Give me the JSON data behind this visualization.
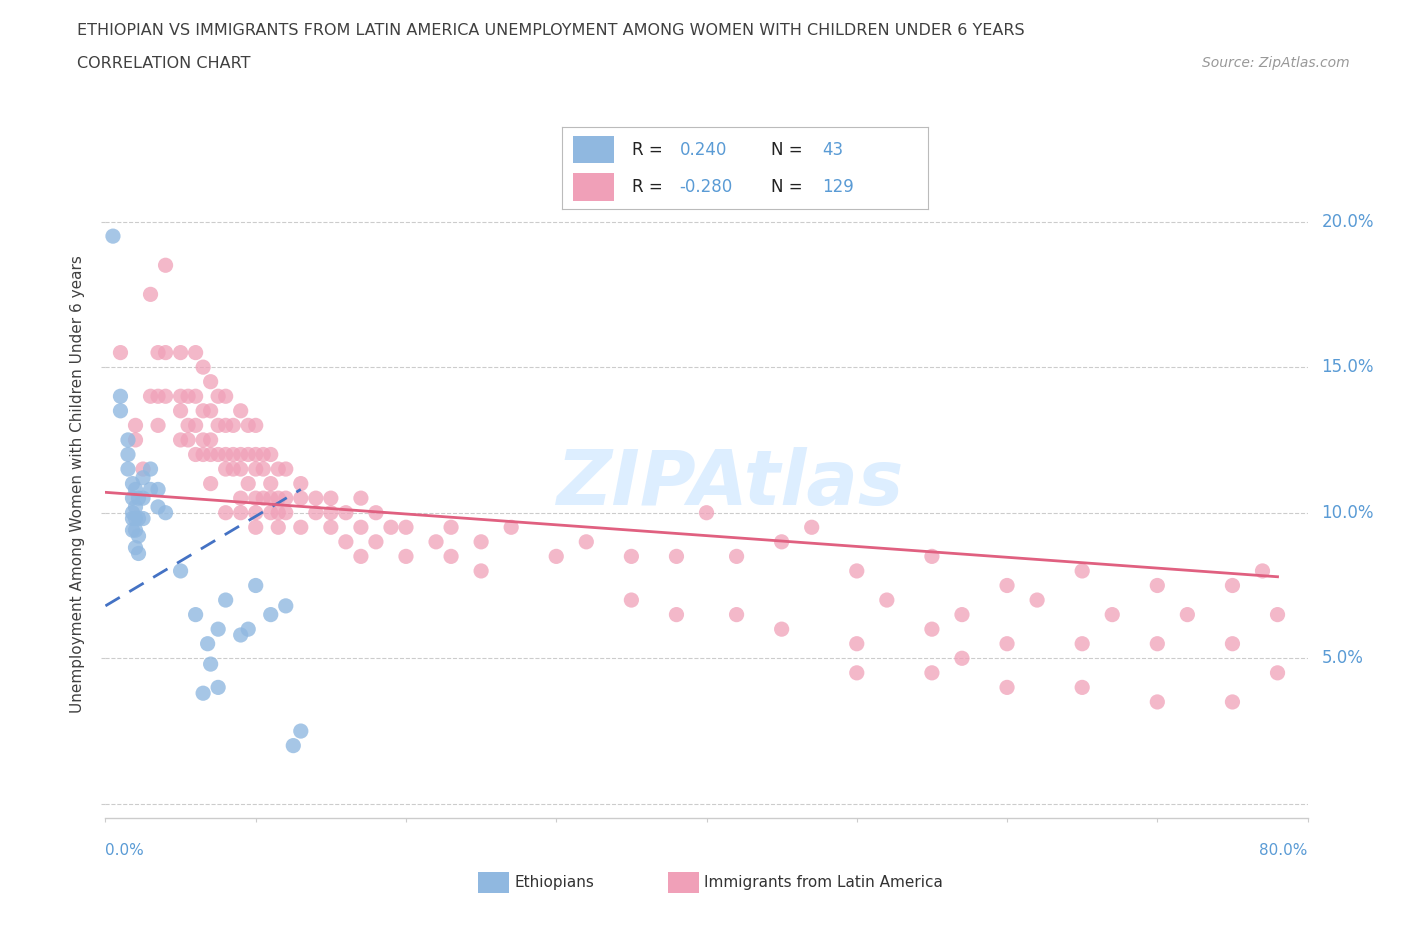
{
  "title_line1": "ETHIOPIAN VS IMMIGRANTS FROM LATIN AMERICA UNEMPLOYMENT AMONG WOMEN WITH CHILDREN UNDER 6 YEARS",
  "title_line2": "CORRELATION CHART",
  "source_text": "Source: ZipAtlas.com",
  "ylabel": "Unemployment Among Women with Children Under 6 years",
  "ytick_labels": [
    "",
    "5.0%",
    "10.0%",
    "15.0%",
    "20.0%"
  ],
  "ytick_values": [
    0.0,
    0.05,
    0.1,
    0.15,
    0.2
  ],
  "xlim": [
    0.0,
    0.8
  ],
  "ylim": [
    -0.005,
    0.225
  ],
  "watermark": "ZIPAtlas",
  "blue_color": "#90b8e0",
  "pink_color": "#f0a0b8",
  "blue_line_color": "#4472c4",
  "pink_line_color": "#e06080",
  "blue_scatter": [
    [
      0.005,
      0.195
    ],
    [
      0.01,
      0.14
    ],
    [
      0.01,
      0.135
    ],
    [
      0.015,
      0.125
    ],
    [
      0.015,
      0.12
    ],
    [
      0.015,
      0.115
    ],
    [
      0.018,
      0.11
    ],
    [
      0.018,
      0.105
    ],
    [
      0.018,
      0.1
    ],
    [
      0.018,
      0.098
    ],
    [
      0.018,
      0.094
    ],
    [
      0.02,
      0.108
    ],
    [
      0.02,
      0.102
    ],
    [
      0.02,
      0.098
    ],
    [
      0.02,
      0.094
    ],
    [
      0.02,
      0.088
    ],
    [
      0.022,
      0.105
    ],
    [
      0.022,
      0.098
    ],
    [
      0.022,
      0.092
    ],
    [
      0.022,
      0.086
    ],
    [
      0.025,
      0.112
    ],
    [
      0.025,
      0.105
    ],
    [
      0.025,
      0.098
    ],
    [
      0.03,
      0.115
    ],
    [
      0.03,
      0.108
    ],
    [
      0.035,
      0.108
    ],
    [
      0.035,
      0.102
    ],
    [
      0.04,
      0.1
    ],
    [
      0.05,
      0.08
    ],
    [
      0.06,
      0.065
    ],
    [
      0.065,
      0.038
    ],
    [
      0.068,
      0.055
    ],
    [
      0.07,
      0.048
    ],
    [
      0.075,
      0.06
    ],
    [
      0.075,
      0.04
    ],
    [
      0.08,
      0.07
    ],
    [
      0.09,
      0.058
    ],
    [
      0.095,
      0.06
    ],
    [
      0.1,
      0.075
    ],
    [
      0.11,
      0.065
    ],
    [
      0.12,
      0.068
    ],
    [
      0.125,
      0.02
    ],
    [
      0.13,
      0.025
    ]
  ],
  "pink_scatter": [
    [
      0.01,
      0.155
    ],
    [
      0.02,
      0.13
    ],
    [
      0.02,
      0.125
    ],
    [
      0.025,
      0.115
    ],
    [
      0.03,
      0.175
    ],
    [
      0.03,
      0.14
    ],
    [
      0.035,
      0.155
    ],
    [
      0.035,
      0.14
    ],
    [
      0.035,
      0.13
    ],
    [
      0.04,
      0.185
    ],
    [
      0.04,
      0.155
    ],
    [
      0.04,
      0.14
    ],
    [
      0.05,
      0.155
    ],
    [
      0.05,
      0.14
    ],
    [
      0.05,
      0.135
    ],
    [
      0.05,
      0.125
    ],
    [
      0.055,
      0.14
    ],
    [
      0.055,
      0.13
    ],
    [
      0.055,
      0.125
    ],
    [
      0.06,
      0.155
    ],
    [
      0.06,
      0.14
    ],
    [
      0.06,
      0.13
    ],
    [
      0.06,
      0.12
    ],
    [
      0.065,
      0.15
    ],
    [
      0.065,
      0.135
    ],
    [
      0.065,
      0.125
    ],
    [
      0.065,
      0.12
    ],
    [
      0.07,
      0.145
    ],
    [
      0.07,
      0.135
    ],
    [
      0.07,
      0.125
    ],
    [
      0.07,
      0.12
    ],
    [
      0.07,
      0.11
    ],
    [
      0.075,
      0.14
    ],
    [
      0.075,
      0.13
    ],
    [
      0.075,
      0.12
    ],
    [
      0.08,
      0.14
    ],
    [
      0.08,
      0.13
    ],
    [
      0.08,
      0.12
    ],
    [
      0.08,
      0.115
    ],
    [
      0.08,
      0.1
    ],
    [
      0.085,
      0.13
    ],
    [
      0.085,
      0.12
    ],
    [
      0.085,
      0.115
    ],
    [
      0.09,
      0.135
    ],
    [
      0.09,
      0.12
    ],
    [
      0.09,
      0.115
    ],
    [
      0.09,
      0.105
    ],
    [
      0.09,
      0.1
    ],
    [
      0.095,
      0.13
    ],
    [
      0.095,
      0.12
    ],
    [
      0.095,
      0.11
    ],
    [
      0.1,
      0.13
    ],
    [
      0.1,
      0.12
    ],
    [
      0.1,
      0.115
    ],
    [
      0.1,
      0.105
    ],
    [
      0.1,
      0.1
    ],
    [
      0.1,
      0.095
    ],
    [
      0.105,
      0.12
    ],
    [
      0.105,
      0.115
    ],
    [
      0.105,
      0.105
    ],
    [
      0.11,
      0.12
    ],
    [
      0.11,
      0.11
    ],
    [
      0.11,
      0.105
    ],
    [
      0.11,
      0.1
    ],
    [
      0.115,
      0.115
    ],
    [
      0.115,
      0.105
    ],
    [
      0.115,
      0.1
    ],
    [
      0.115,
      0.095
    ],
    [
      0.12,
      0.115
    ],
    [
      0.12,
      0.105
    ],
    [
      0.12,
      0.1
    ],
    [
      0.13,
      0.11
    ],
    [
      0.13,
      0.105
    ],
    [
      0.13,
      0.095
    ],
    [
      0.14,
      0.105
    ],
    [
      0.14,
      0.1
    ],
    [
      0.15,
      0.105
    ],
    [
      0.15,
      0.1
    ],
    [
      0.15,
      0.095
    ],
    [
      0.16,
      0.1
    ],
    [
      0.16,
      0.09
    ],
    [
      0.17,
      0.105
    ],
    [
      0.17,
      0.095
    ],
    [
      0.17,
      0.085
    ],
    [
      0.18,
      0.1
    ],
    [
      0.18,
      0.09
    ],
    [
      0.19,
      0.095
    ],
    [
      0.2,
      0.095
    ],
    [
      0.2,
      0.085
    ],
    [
      0.22,
      0.09
    ],
    [
      0.23,
      0.095
    ],
    [
      0.23,
      0.085
    ],
    [
      0.25,
      0.09
    ],
    [
      0.25,
      0.08
    ],
    [
      0.27,
      0.095
    ],
    [
      0.3,
      0.085
    ],
    [
      0.32,
      0.09
    ],
    [
      0.35,
      0.085
    ],
    [
      0.35,
      0.07
    ],
    [
      0.38,
      0.085
    ],
    [
      0.38,
      0.065
    ],
    [
      0.4,
      0.1
    ],
    [
      0.42,
      0.085
    ],
    [
      0.42,
      0.065
    ],
    [
      0.45,
      0.09
    ],
    [
      0.45,
      0.06
    ],
    [
      0.47,
      0.095
    ],
    [
      0.5,
      0.08
    ],
    [
      0.5,
      0.055
    ],
    [
      0.5,
      0.045
    ],
    [
      0.52,
      0.07
    ],
    [
      0.55,
      0.085
    ],
    [
      0.55,
      0.06
    ],
    [
      0.55,
      0.045
    ],
    [
      0.57,
      0.065
    ],
    [
      0.57,
      0.05
    ],
    [
      0.6,
      0.075
    ],
    [
      0.6,
      0.055
    ],
    [
      0.6,
      0.04
    ],
    [
      0.62,
      0.07
    ],
    [
      0.65,
      0.08
    ],
    [
      0.65,
      0.055
    ],
    [
      0.65,
      0.04
    ],
    [
      0.67,
      0.065
    ],
    [
      0.7,
      0.075
    ],
    [
      0.7,
      0.055
    ],
    [
      0.7,
      0.035
    ],
    [
      0.72,
      0.065
    ],
    [
      0.75,
      0.075
    ],
    [
      0.75,
      0.055
    ],
    [
      0.75,
      0.035
    ],
    [
      0.77,
      0.08
    ],
    [
      0.78,
      0.065
    ],
    [
      0.78,
      0.045
    ]
  ],
  "blue_trendline": {
    "x_start": 0.0,
    "y_start": 0.068,
    "x_end": 0.13,
    "y_end": 0.108
  },
  "pink_trendline": {
    "x_start": 0.0,
    "y_start": 0.107,
    "x_end": 0.78,
    "y_end": 0.078
  },
  "background_color": "#ffffff",
  "grid_color": "#cccccc",
  "grid_style": "--",
  "title_color": "#404040",
  "source_color": "#999999",
  "tick_label_color": "#5a9bd5"
}
